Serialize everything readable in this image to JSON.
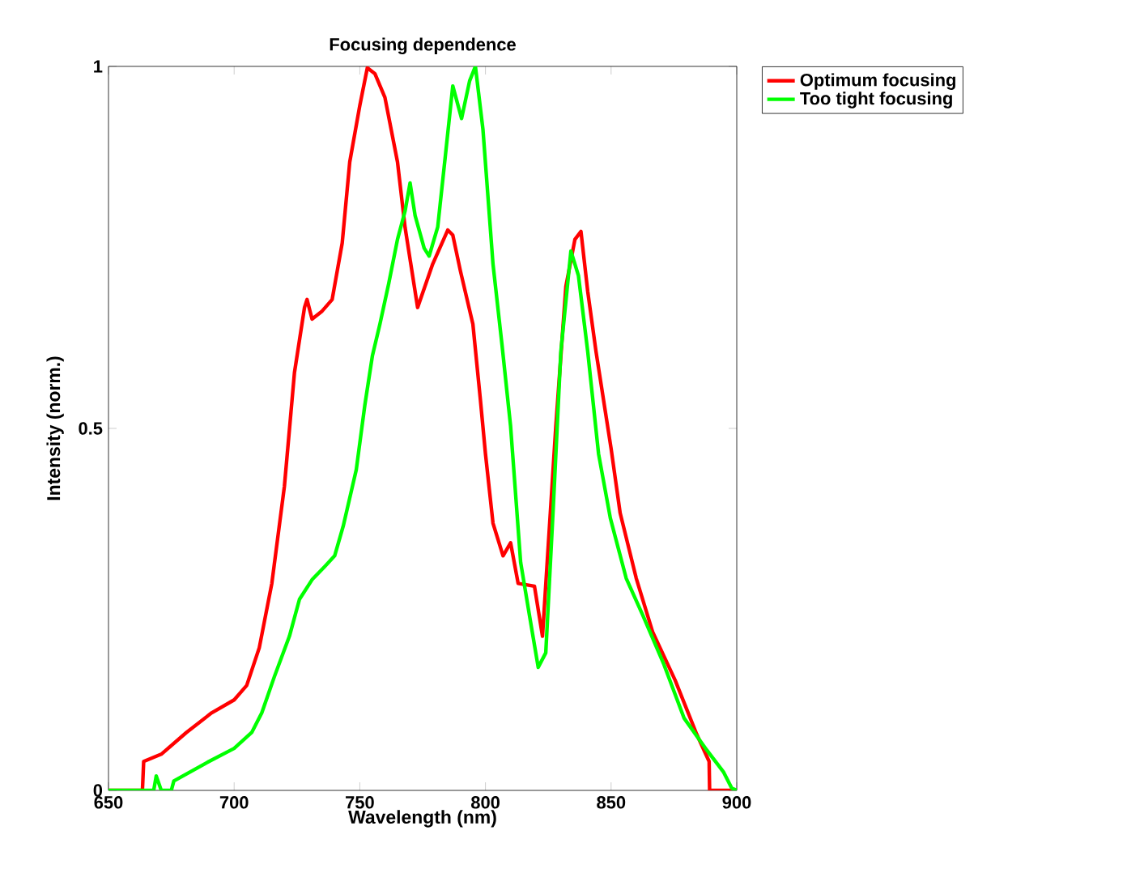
{
  "chart_data": {
    "type": "line",
    "title": "Focusing dependence",
    "xlabel": "Wavelength (nm)",
    "ylabel": "Intensity (norm.)",
    "xlim": [
      650,
      900
    ],
    "ylim": [
      0,
      1
    ],
    "xticks": [
      650,
      700,
      750,
      800,
      850,
      900
    ],
    "yticks": [
      0,
      0.5,
      1
    ],
    "legend": "top right",
    "grid": false,
    "marker": "none",
    "line_style": "solid",
    "series": [
      {
        "name": "Optimum focusing",
        "color": "#ff0000",
        "x": [
          650,
          663.5,
          664,
          671,
          681,
          691,
          700,
          705,
          710,
          715,
          720,
          724,
          728,
          729,
          731,
          735,
          739,
          743,
          746,
          750,
          753,
          756,
          760,
          765,
          768,
          773,
          779,
          785,
          787,
          790,
          795,
          798,
          800,
          803,
          807,
          810,
          813,
          819.5,
          822.7,
          828,
          832,
          835.6,
          838,
          840.7,
          844,
          850,
          853.6,
          860,
          866.5,
          875.5,
          884,
          889,
          889.2,
          893,
          900
        ],
        "values": [
          0,
          0,
          0.04,
          0.05,
          0.08,
          0.107,
          0.125,
          0.145,
          0.197,
          0.286,
          0.42,
          0.577,
          0.667,
          0.678,
          0.651,
          0.662,
          0.678,
          0.756,
          0.868,
          0.946,
          0.998,
          0.99,
          0.957,
          0.868,
          0.778,
          0.667,
          0.727,
          0.774,
          0.767,
          0.718,
          0.644,
          0.539,
          0.465,
          0.369,
          0.324,
          0.342,
          0.286,
          0.282,
          0.213,
          0.503,
          0.696,
          0.761,
          0.772,
          0.689,
          0.606,
          0.472,
          0.383,
          0.293,
          0.219,
          0.152,
          0.078,
          0.04,
          0,
          0,
          0
        ]
      },
      {
        "name": "Too tight focusing",
        "color": "#00ff00",
        "x": [
          650,
          668,
          669,
          671,
          675,
          676,
          690,
          700,
          707,
          711,
          716,
          722,
          726,
          731,
          736,
          740,
          743.4,
          748.6,
          752,
          755,
          758,
          761.5,
          765,
          768,
          770,
          772,
          775.6,
          777.6,
          781,
          784,
          787,
          790.5,
          793.7,
          796,
          799,
          803,
          806.6,
          810,
          814,
          817.5,
          821,
          824,
          827,
          830,
          834,
          837,
          840.7,
          845,
          849.7,
          856,
          862.6,
          871,
          879,
          888,
          894.8,
          898,
          900
        ],
        "values": [
          0,
          0,
          0.02,
          0,
          0,
          0.013,
          0.04,
          0.058,
          0.08,
          0.107,
          0.157,
          0.213,
          0.264,
          0.291,
          0.309,
          0.324,
          0.365,
          0.443,
          0.532,
          0.6,
          0.644,
          0.7,
          0.761,
          0.8,
          0.839,
          0.794,
          0.749,
          0.738,
          0.778,
          0.875,
          0.973,
          0.928,
          0.98,
          1.0,
          0.913,
          0.727,
          0.615,
          0.503,
          0.315,
          0.242,
          0.17,
          0.19,
          0.392,
          0.606,
          0.745,
          0.711,
          0.606,
          0.465,
          0.376,
          0.293,
          0.242,
          0.174,
          0.1,
          0.056,
          0.025,
          0.003,
          0
        ]
      }
    ]
  }
}
